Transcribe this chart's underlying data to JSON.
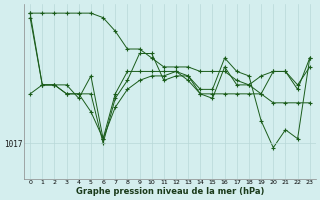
{
  "xlabel_label": "Graphe pression niveau de la mer (hPa)",
  "background_color": "#d4eeee",
  "grid_color": "#b8d8d8",
  "line_color": "#1a5c1a",
  "ylim": [
    1013.0,
    1032.5
  ],
  "xlim": [
    -0.5,
    23.5
  ],
  "y_ref": 1017.0,
  "series": [
    [
      1031.0,
      1023.5,
      1023.5,
      1023.5,
      1022.0,
      1024.5,
      1017.5,
      1022.5,
      1025.0,
      1025.0,
      1025.0,
      1025.0,
      1025.0,
      1024.5,
      1022.5,
      1022.5,
      1022.5,
      1022.5,
      1022.5,
      1022.5,
      1025.0,
      1025.0,
      1023.0,
      1026.5
    ],
    [
      1031.5,
      1031.5,
      1031.5,
      1031.5,
      1031.5,
      1031.5,
      1031.0,
      1029.5,
      1027.5,
      1027.5,
      1026.5,
      1025.5,
      1025.5,
      1025.5,
      1025.0,
      1025.0,
      1025.0,
      1024.0,
      1023.5,
      1022.5,
      1021.5,
      1021.5,
      1021.5,
      1021.5
    ],
    [
      1031.5,
      1023.5,
      1023.5,
      1022.5,
      1022.5,
      1022.5,
      1017.0,
      1022.0,
      1024.0,
      1027.0,
      1027.0,
      1024.0,
      1024.5,
      1024.5,
      1023.0,
      1023.0,
      1026.5,
      1025.0,
      1024.5,
      1019.5,
      1016.5,
      1018.5,
      1017.5,
      1026.5
    ],
    [
      1022.5,
      1023.5,
      1023.5,
      1022.5,
      1022.5,
      1020.5,
      1017.5,
      1021.0,
      1023.0,
      1024.0,
      1024.5,
      1024.5,
      1025.0,
      1024.0,
      1022.5,
      1022.0,
      1025.5,
      1023.5,
      1023.5,
      1024.5,
      1025.0,
      1025.0,
      1023.5,
      1025.5
    ]
  ]
}
